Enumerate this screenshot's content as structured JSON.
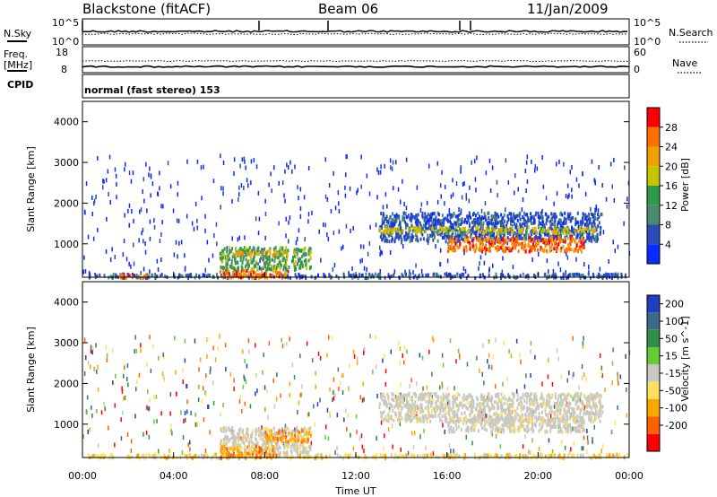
{
  "header": {
    "station": "Blackstone (fitACF)",
    "beam": "Beam 06",
    "date": "11/Jan/2009"
  },
  "panels": {
    "nsky_label": "N.Sky",
    "nsky_top": "10^5",
    "nsky_bottom": "10^0",
    "nsearch_label": "N.Search",
    "nsearch_top": "10^5",
    "nsearch_bottom": "10^0",
    "freq_label": "Freq.",
    "freq_unit": "[MHz]",
    "freq_top": "18",
    "freq_bottom": "8",
    "nave_label": "Nave",
    "nave_top": "60",
    "nave_bottom": "0",
    "cpid_label": "CPID",
    "cpid_text": "normal (fast stereo) 153"
  },
  "chart_data": [
    {
      "type": "heatmap",
      "name": "power",
      "ylabel": "Slant Range [km]",
      "xlabel": "",
      "ylim": [
        180,
        4500
      ],
      "yticks": [
        "1000",
        "2000",
        "3000",
        "4000"
      ],
      "colorbar_label": "Power [dB]",
      "colorbar_ticks": [
        "4",
        "8",
        "12",
        "16",
        "20",
        "24",
        "28"
      ],
      "colors": [
        "#0a2bff",
        "#2a4bb8",
        "#4a8a6e",
        "#2c9a4a",
        "#c7c400",
        "#f0a000",
        "#ff7000",
        "#ff0000"
      ],
      "regions": [
        {
          "t0": 0.2,
          "t1": 24.0,
          "r0": 200,
          "r1": 300,
          "level": 1
        },
        {
          "t0": 1.5,
          "t1": 2.8,
          "r0": 200,
          "r1": 300,
          "level": 6
        },
        {
          "t0": 6.0,
          "t1": 9.0,
          "r0": 200,
          "r1": 400,
          "level": 6
        },
        {
          "t0": 6.0,
          "t1": 10.0,
          "r0": 400,
          "r1": 950,
          "level": 3
        },
        {
          "t0": 6.5,
          "t1": 9.0,
          "r0": 750,
          "r1": 850,
          "level": 5
        },
        {
          "t0": 13.0,
          "t1": 22.8,
          "r0": 1100,
          "r1": 1800,
          "level": 1
        },
        {
          "t0": 13.0,
          "t1": 22.5,
          "r0": 1300,
          "r1": 1450,
          "level": 4
        },
        {
          "t0": 16.0,
          "t1": 22.0,
          "r0": 850,
          "r1": 1200,
          "level": 6
        }
      ]
    },
    {
      "type": "heatmap",
      "name": "velocity",
      "ylabel": "Slant Range [km]",
      "xlabel": "Time UT",
      "ylim": [
        180,
        4500
      ],
      "yticks": [
        "1000",
        "2000",
        "3000",
        "4000"
      ],
      "xticks": [
        "00:00",
        "04:00",
        "08:00",
        "12:00",
        "16:00",
        "20:00",
        "00:00"
      ],
      "xlim": [
        0,
        24
      ],
      "colorbar_label": "Velocity [m s^-1]",
      "colorbar_ticks": [
        "200",
        "100",
        "50",
        "15",
        "-15",
        "-50",
        "-100",
        "-200"
      ],
      "colors": [
        "#1f3fc0",
        "#3e6a8a",
        "#2f8f4a",
        "#66cc33",
        "#c8c8c0",
        "#ffe060",
        "#ffa500",
        "#ff6000",
        "#ff0000"
      ],
      "regions": [
        {
          "t0": 0.2,
          "t1": 24.0,
          "r0": 200,
          "r1": 300,
          "level": 5
        },
        {
          "t0": 6.0,
          "t1": 10.0,
          "r0": 300,
          "r1": 950,
          "level": 4
        },
        {
          "t0": 8.0,
          "t1": 10.0,
          "r0": 600,
          "r1": 900,
          "level": 6
        },
        {
          "t0": 6.0,
          "t1": 8.5,
          "r0": 200,
          "r1": 500,
          "level": 6
        },
        {
          "t0": 13.0,
          "t1": 22.8,
          "r0": 1100,
          "r1": 1800,
          "level": 4
        },
        {
          "t0": 16.0,
          "t1": 22.0,
          "r0": 850,
          "r1": 1200,
          "level": 4
        }
      ]
    }
  ]
}
